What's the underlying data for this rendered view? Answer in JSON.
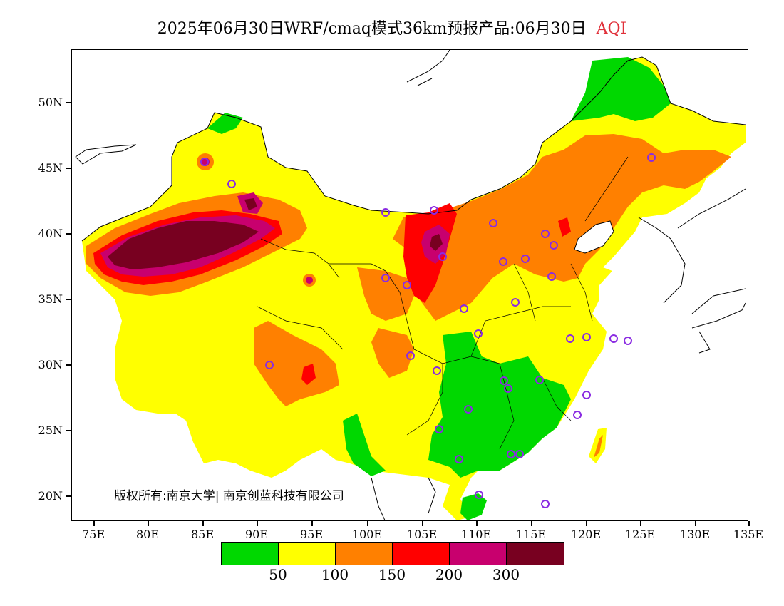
{
  "title": {
    "main": "2025年06月30日WRF/cmaq模式36km预报产品:06月30日",
    "variable": "AQI"
  },
  "lat_labels": [
    "50N",
    "45N",
    "40N",
    "35N",
    "30N",
    "25N",
    "20N"
  ],
  "lon_labels": [
    "75E",
    "80E",
    "85E",
    "90E",
    "95E",
    "100E",
    "105E",
    "110E",
    "115E",
    "120E",
    "125E",
    "130E",
    "135E"
  ],
  "copyright": "版权所有:南京大学| 南京创蓝科技有限公司",
  "legend": {
    "colors": [
      "#00d800",
      "#ffff00",
      "#ff8000",
      "#ff0000",
      "#c8006e",
      "#780020"
    ],
    "labels": [
      "50",
      "100",
      "150",
      "200",
      "300"
    ]
  },
  "colors": {
    "good": "#00d800",
    "moderate": "#ffff00",
    "sensitive": "#ff8000",
    "unhealthy": "#ff0000",
    "very_unhealthy": "#c8006e",
    "hazardous": "#780020",
    "station_marker": "#8a2be2"
  },
  "station_count": 36
}
